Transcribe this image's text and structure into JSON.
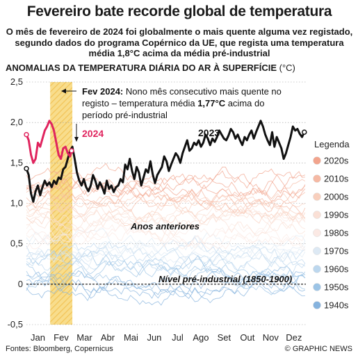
{
  "title": "Fevereiro bate recorde global de temperatura",
  "subtitle": "O mês de fevereiro de 2024 foi globalmente o mais quente alguma vez registado, segundo dados do programa Copérnico da UE, que regista uma temperatura média 1,8°C acima da média pré-industrial",
  "chart_heading": "ANOMALIAS DA TEMPERATURA DIÁRIA DO AR À SUPERFÍCIE",
  "chart_unit": "(°C)",
  "source": "Fontes: Bloomberg, Copernicus",
  "credit": "© GRAPHIC NEWS",
  "colors": {
    "y2024": "#e0245e",
    "y2023": "#111111",
    "highlight": "#f5c84c",
    "preindustrial": "#111111"
  },
  "chart_data": {
    "type": "line",
    "ylim": [
      -0.5,
      2.5
    ],
    "yticks": [
      -0.5,
      0,
      0.5,
      1.0,
      1.5,
      2.0,
      2.5
    ],
    "yticklabels": [
      "-0,5",
      "0",
      "0,5",
      "1,0",
      "1,5",
      "2,0",
      "2,5"
    ],
    "xlim": [
      0,
      365
    ],
    "months": [
      "Jan",
      "Fev",
      "Mar",
      "Abr",
      "Mai",
      "Jun",
      "Jul",
      "Ago",
      "Set",
      "Out",
      "Nov",
      "Dez"
    ],
    "highlight_range_days": [
      31,
      60
    ],
    "annotation_label": "Fev 2024:",
    "annotation_text": "Nono mês consecutivo mais quente no registo – temperatura média",
    "annotation_value": "1,77°C",
    "annotation_text2": "acima do",
    "annotation_text3": "período pré-industrial",
    "label_2024": "2024",
    "label_2023": "2023",
    "label_previous": "Anos anteriores",
    "label_preindustrial": "Nível pré-industrial (1850-1900)",
    "preindustrial_level": 0,
    "legend_title": "Legenda",
    "legend_entries": [
      {
        "label": "2020s",
        "color": "#f2a48d"
      },
      {
        "label": "2010s",
        "color": "#f5b9a4"
      },
      {
        "label": "2000s",
        "color": "#f8cfbd"
      },
      {
        "label": "1990s",
        "color": "#fae0d6"
      },
      {
        "label": "1980s",
        "color": "#fbe9e4"
      },
      {
        "label": "1970s",
        "color": "#dde9f4"
      },
      {
        "label": "1960s",
        "color": "#bcd7ee"
      },
      {
        "label": "1950s",
        "color": "#9cc4e6"
      },
      {
        "label": "1940s",
        "color": "#86b3de"
      }
    ],
    "series": [
      {
        "name": "2024",
        "x": [
          0,
          3,
          6,
          9,
          12,
          15,
          18,
          21,
          24,
          27,
          30,
          33,
          36,
          39,
          42,
          45,
          48,
          51,
          54,
          57,
          59
        ],
        "y": [
          1.85,
          1.78,
          1.6,
          1.5,
          1.55,
          1.75,
          1.7,
          1.8,
          1.9,
          1.95,
          2.02,
          1.98,
          1.9,
          1.75,
          1.6,
          1.55,
          1.68,
          1.7,
          1.62,
          1.58,
          1.65
        ]
      },
      {
        "name": "2023",
        "x": [
          0,
          3,
          6,
          9,
          12,
          15,
          18,
          21,
          24,
          27,
          30,
          33,
          36,
          39,
          42,
          45,
          48,
          51,
          54,
          57,
          60,
          63,
          66,
          69,
          72,
          75,
          78,
          81,
          84,
          87,
          90,
          93,
          96,
          99,
          102,
          105,
          108,
          111,
          114,
          117,
          120,
          123,
          126,
          129,
          132,
          135,
          138,
          141,
          144,
          147,
          150,
          153,
          156,
          159,
          162,
          165,
          168,
          171,
          174,
          177,
          180,
          183,
          186,
          189,
          192,
          195,
          198,
          201,
          204,
          207,
          210,
          213,
          216,
          219,
          222,
          225,
          228,
          231,
          234,
          237,
          240,
          243,
          246,
          249,
          252,
          255,
          258,
          261,
          264,
          267,
          270,
          273,
          276,
          279,
          282,
          285,
          288,
          291,
          294,
          297,
          300,
          303,
          306,
          309,
          312,
          315,
          318,
          321,
          324,
          327,
          330,
          333,
          336,
          339,
          342,
          345,
          348,
          351,
          354,
          357,
          360,
          363
        ],
        "y": [
          1.43,
          1.35,
          1.12,
          1.02,
          1.15,
          1.22,
          1.1,
          1.2,
          1.28,
          1.22,
          1.26,
          1.2,
          1.28,
          1.24,
          1.32,
          1.3,
          1.42,
          1.45,
          1.55,
          1.65,
          1.7,
          1.55,
          1.38,
          1.28,
          1.22,
          1.3,
          1.2,
          1.15,
          1.22,
          1.35,
          1.28,
          1.18,
          1.26,
          1.2,
          1.12,
          1.28,
          1.18,
          1.22,
          1.14,
          1.2,
          1.22,
          1.3,
          1.26,
          1.48,
          1.42,
          1.55,
          1.4,
          1.3,
          1.45,
          1.38,
          1.22,
          1.32,
          1.42,
          1.38,
          1.52,
          1.36,
          1.25,
          1.35,
          1.4,
          1.45,
          1.58,
          1.52,
          1.4,
          1.48,
          1.55,
          1.62,
          1.58,
          1.5,
          1.62,
          1.7,
          1.78,
          1.65,
          1.68,
          1.75,
          1.72,
          1.78,
          1.7,
          1.75,
          1.85,
          1.8,
          1.72,
          1.8,
          1.76,
          1.82,
          1.9,
          1.85,
          1.8,
          1.78,
          1.84,
          1.92,
          1.88,
          1.8,
          1.85,
          1.78,
          1.72,
          1.82,
          1.78,
          1.85,
          1.9,
          1.8,
          1.88,
          1.95,
          2.02,
          1.95,
          1.85,
          1.78,
          1.72,
          1.88,
          1.7,
          1.82,
          1.75,
          1.68,
          1.55,
          1.62,
          1.72,
          1.82,
          1.95,
          1.9,
          1.92,
          1.86,
          1.82,
          1.88
        ]
      }
    ]
  }
}
